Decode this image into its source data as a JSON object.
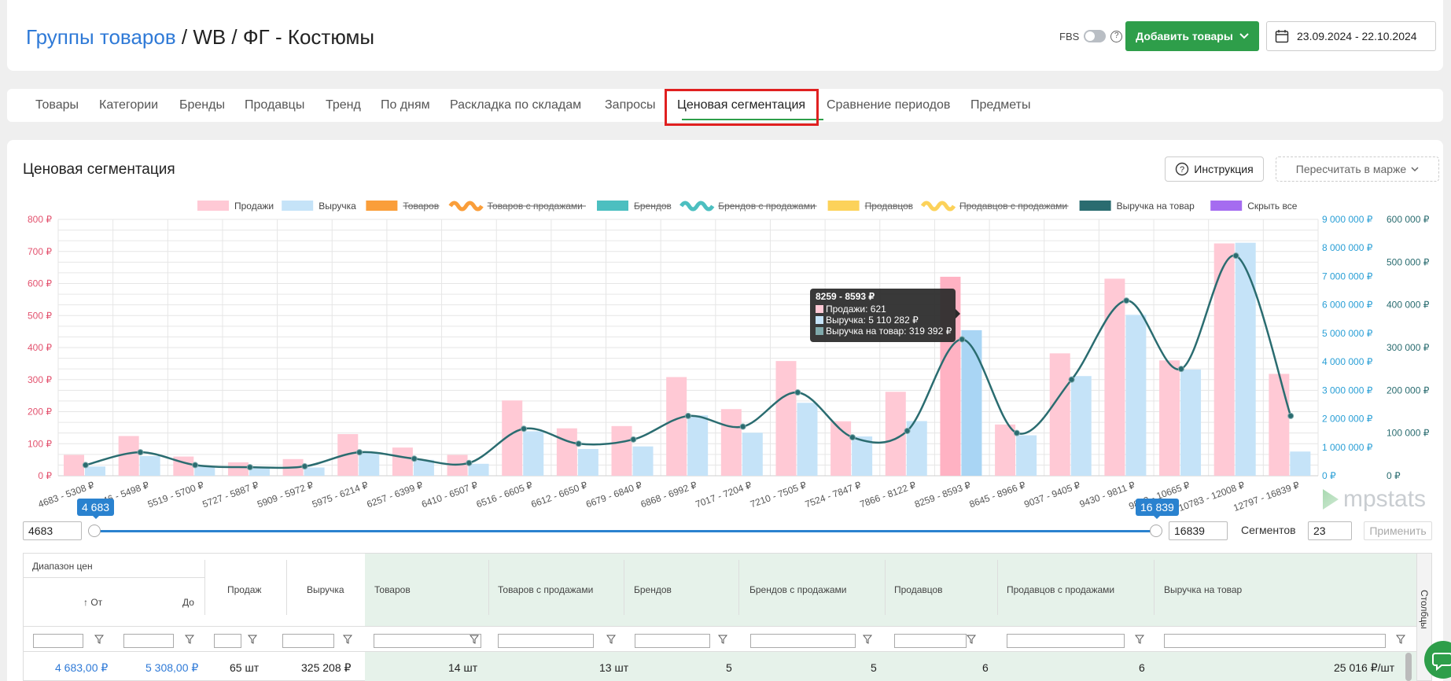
{
  "header": {
    "title_link": "Группы товаров",
    "title_rest": " / WB / ФГ - Костюмы",
    "fbs_label": "FBS",
    "help_glyph": "?",
    "add_button": "Добавить товары",
    "date_range": "23.09.2024 - 22.10.2024"
  },
  "tabs": [
    {
      "label": "Товары"
    },
    {
      "label": "Категории"
    },
    {
      "label": "Бренды"
    },
    {
      "label": "Продавцы"
    },
    {
      "label": "Тренд"
    },
    {
      "label": "По дням"
    },
    {
      "label": "Раскладка по складам"
    },
    {
      "label": "Запросы"
    },
    {
      "label": "Ценовая сегментация",
      "active": true
    },
    {
      "label": "Сравнение периодов"
    },
    {
      "label": "Предметы"
    }
  ],
  "section": {
    "title": "Ценовая сегментация",
    "instruction_button": "Инструкция",
    "recalc_button": "Пересчитать в марже"
  },
  "colors": {
    "accent_green": "#2e9e4a",
    "link_blue": "#2f7ad7",
    "sales_bar": "#ffc9d5",
    "revenue_bar": "#c5e3f8",
    "revenue_per_item_line": "#2a6c70"
  },
  "chart_data": {
    "type": "bar",
    "legend": [
      {
        "name": "Продажи",
        "color": "#ffc9d5",
        "active": true,
        "shape": "rect"
      },
      {
        "name": "Выручка",
        "color": "#c5e3f8",
        "active": true,
        "shape": "rect"
      },
      {
        "name": "Товаров",
        "color": "#fa9e3a",
        "active": false,
        "shape": "rect"
      },
      {
        "name": "Товаров с продажами",
        "color": "#fa9e3a",
        "active": false,
        "shape": "wave"
      },
      {
        "name": "Брендов",
        "color": "#4cbfc0",
        "active": false,
        "shape": "rect"
      },
      {
        "name": "Брендов с продажами",
        "color": "#4cbfc0",
        "active": false,
        "shape": "wave"
      },
      {
        "name": "Продавцов",
        "color": "#fcd25a",
        "active": false,
        "shape": "rect"
      },
      {
        "name": "Продавцов с продажами",
        "color": "#fcd25a",
        "active": false,
        "shape": "wave"
      },
      {
        "name": "Выручка на товар",
        "color": "#2a6c70",
        "active": true,
        "shape": "rect"
      },
      {
        "name": "Скрыть все",
        "color": "#a56cf0",
        "active": true,
        "shape": "rect"
      }
    ],
    "categories": [
      "4683 - 5308 ₽",
      "5346 - 5498 ₽",
      "5519 - 5700 ₽",
      "5727 - 5887 ₽",
      "5909 - 5972 ₽",
      "5975 - 6214 ₽",
      "6257 - 6399 ₽",
      "6410 - 6507 ₽",
      "6516 - 6605 ₽",
      "6612 - 6650 ₽",
      "6679 - 6840 ₽",
      "6868 - 6992 ₽",
      "7017 - 7204 ₽",
      "7210 - 7505 ₽",
      "7524 - 7847 ₽",
      "7866 - 8122 ₽",
      "8259 - 8593 ₽",
      "8645 - 8966 ₽",
      "9037 - 9405 ₽",
      "9430 - 9811 ₽",
      "9843 - 10665 ₽",
      "10783 - 12008 ₽",
      "12797 - 16839 ₽"
    ],
    "series": [
      {
        "name": "Продажи",
        "axis": "left",
        "values": [
          65,
          124,
          60,
          42,
          52,
          130,
          88,
          65,
          235,
          148,
          155,
          308,
          208,
          358,
          170,
          262,
          621,
          160,
          382,
          615,
          360,
          725,
          318
        ]
      },
      {
        "name": "Выручка",
        "axis": "right1",
        "values": [
          325208,
          690000,
          320000,
          260000,
          290000,
          800000,
          560000,
          420000,
          1560000,
          940000,
          1030000,
          2120000,
          1510000,
          2560000,
          1380000,
          1920000,
          5110282,
          1420000,
          3500000,
          5650000,
          3730000,
          8180000,
          850000
        ]
      },
      {
        "name": "Выручка на товар",
        "axis": "right2",
        "values": [
          25016,
          55000,
          25000,
          20000,
          22000,
          55000,
          40000,
          30000,
          110000,
          75000,
          85000,
          140000,
          115000,
          195000,
          90000,
          105000,
          319392,
          100000,
          225000,
          410000,
          250000,
          515000,
          140000
        ]
      }
    ],
    "yaxis_left": {
      "min": 0,
      "max": 800,
      "step": 100,
      "ticks": [
        "0 ₽",
        "100 ₽",
        "200 ₽",
        "300 ₽",
        "400 ₽",
        "500 ₽",
        "600 ₽",
        "700 ₽",
        "800 ₽"
      ],
      "color": "#e3536f"
    },
    "yaxis_right1": {
      "min": 0,
      "max": 9000000,
      "step": 1000000,
      "ticks": [
        "0 ₽",
        "1 000 000 ₽",
        "2 000 000 ₽",
        "3 000 000 ₽",
        "4 000 000 ₽",
        "5 000 000 ₽",
        "6 000 000 ₽",
        "7 000 000 ₽",
        "8 000 000 ₽",
        "9 000 000 ₽"
      ],
      "color": "#2a9fd6"
    },
    "yaxis_right2": {
      "min": 0,
      "max": 600000,
      "step": 100000,
      "ticks": [
        "0 ₽",
        "100 000 ₽",
        "200 000 ₽",
        "300 000 ₽",
        "400 000 ₽",
        "500 000 ₽",
        "600 000 ₽"
      ],
      "color": "#2a6c70"
    },
    "tooltip": {
      "category_index": 16,
      "title": "8259 - 8593 ₽",
      "lines": [
        "Продажи: 621",
        "Выручка: 5 110 282 ₽",
        "Выручка на товар: 319 392 ₽"
      ]
    },
    "grid": true
  },
  "watermark": "mpstats",
  "slider": {
    "min_value": "4683",
    "max_value": "16839",
    "min_label": "4 683",
    "max_label": "16 839",
    "min_fraction": 0,
    "max_fraction": 1,
    "segments_label": "Сегментов",
    "segments_value": "23",
    "apply_button": "Применить"
  },
  "table": {
    "group_header": "Диапазон цен",
    "columns": {
      "from": "↑ От",
      "to": "До",
      "sales": "Продаж",
      "revenue": "Выручка",
      "items": "Товаров",
      "items_with_sales": "Товаров с продажами",
      "brands": "Брендов",
      "brands_with_sales": "Брендов с продажами",
      "sellers": "Продавцов",
      "sellers_with_sales": "Продавцов с продажами",
      "revenue_per_item": "Выручка на товар"
    },
    "side_panel_label": "Столбцы",
    "rows": [
      {
        "from": "4 683,00 ₽",
        "to": "5 308,00 ₽",
        "sales": "65 шт",
        "revenue": "325 208 ₽",
        "items": "14 шт",
        "items_with_sales": "13 шт",
        "brands": "5",
        "brands_with_sales": "5",
        "sellers": "6",
        "sellers_with_sales": "6",
        "revenue_per_item": "25 016 ₽/шт"
      }
    ]
  }
}
